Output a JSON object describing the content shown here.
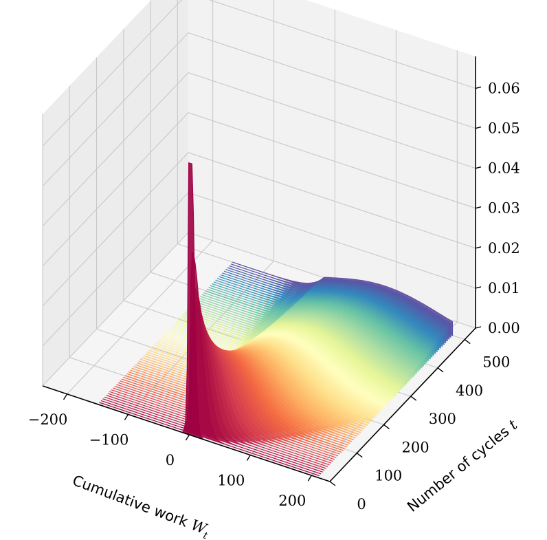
{
  "chart_data": {
    "type": "3d-waterfall",
    "xlabel": "Cumulative work",
    "xlabel_math": "W",
    "xlabel_sub": "t",
    "ylabel": "Number of cycles",
    "ylabel_math": "t",
    "zlabel": "",
    "xlim": [
      -240,
      230
    ],
    "ylim": [
      0,
      540
    ],
    "zlim": [
      0,
      0.068
    ],
    "x_ticks": [
      -200,
      -100,
      0,
      100,
      200
    ],
    "x_tick_labels": [
      "−200",
      "−100",
      "0",
      "100",
      "200"
    ],
    "y_ticks": [
      0,
      100,
      200,
      300,
      400,
      500
    ],
    "y_tick_labels": [
      "0",
      "100",
      "200",
      "300",
      "400",
      "500"
    ],
    "z_ticks": [
      0.0,
      0.01,
      0.02,
      0.03,
      0.04,
      0.05,
      0.06
    ],
    "z_tick_labels": [
      "0.00",
      "0.01",
      "0.02",
      "0.03",
      "0.04",
      "0.05",
      "0.06"
    ],
    "grid": true,
    "colormap": "Spectral",
    "colormap_stops": [
      "#9e0142",
      "#d53e4f",
      "#f46d43",
      "#fdae61",
      "#fee08b",
      "#ffffbf",
      "#e6f598",
      "#abdda4",
      "#66c2a5",
      "#3288bd",
      "#5e4fa2"
    ],
    "series_description_values": {
      "t_range": [
        0,
        500
      ],
      "num_curves": 80,
      "peak_at_t0": {
        "x": 0,
        "density": 0.047
      },
      "wide_curve_at_t500": {
        "mean_x": 100,
        "std_x": 95,
        "peak_density": 0.005
      }
    }
  }
}
